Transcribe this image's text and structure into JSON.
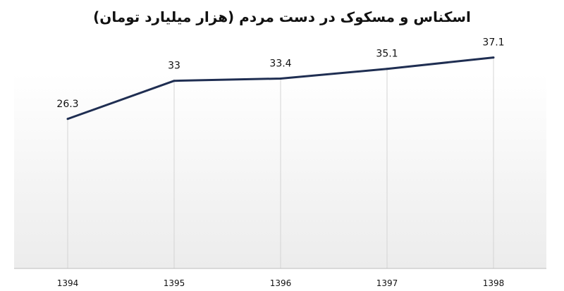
{
  "chart_data": {
    "type": "line",
    "title": "اسکناس و مسکوک در دست مردم (هزار میلیارد تومان)",
    "xlabel": "",
    "ylabel": "",
    "categories": [
      "1394",
      "1395",
      "1396",
      "1397",
      "1398"
    ],
    "series": [
      {
        "values": [
          26.3,
          33,
          33.4,
          35.1,
          37.1
        ],
        "labels": [
          "26.3",
          "33",
          "33.4",
          "35.1",
          "37.1"
        ],
        "color": "#1f2e52"
      }
    ],
    "ylim": [
      0,
      43
    ],
    "grid": "vertical",
    "legend": "none",
    "background_gradient": [
      "#ffffff",
      "#ececec"
    ]
  }
}
